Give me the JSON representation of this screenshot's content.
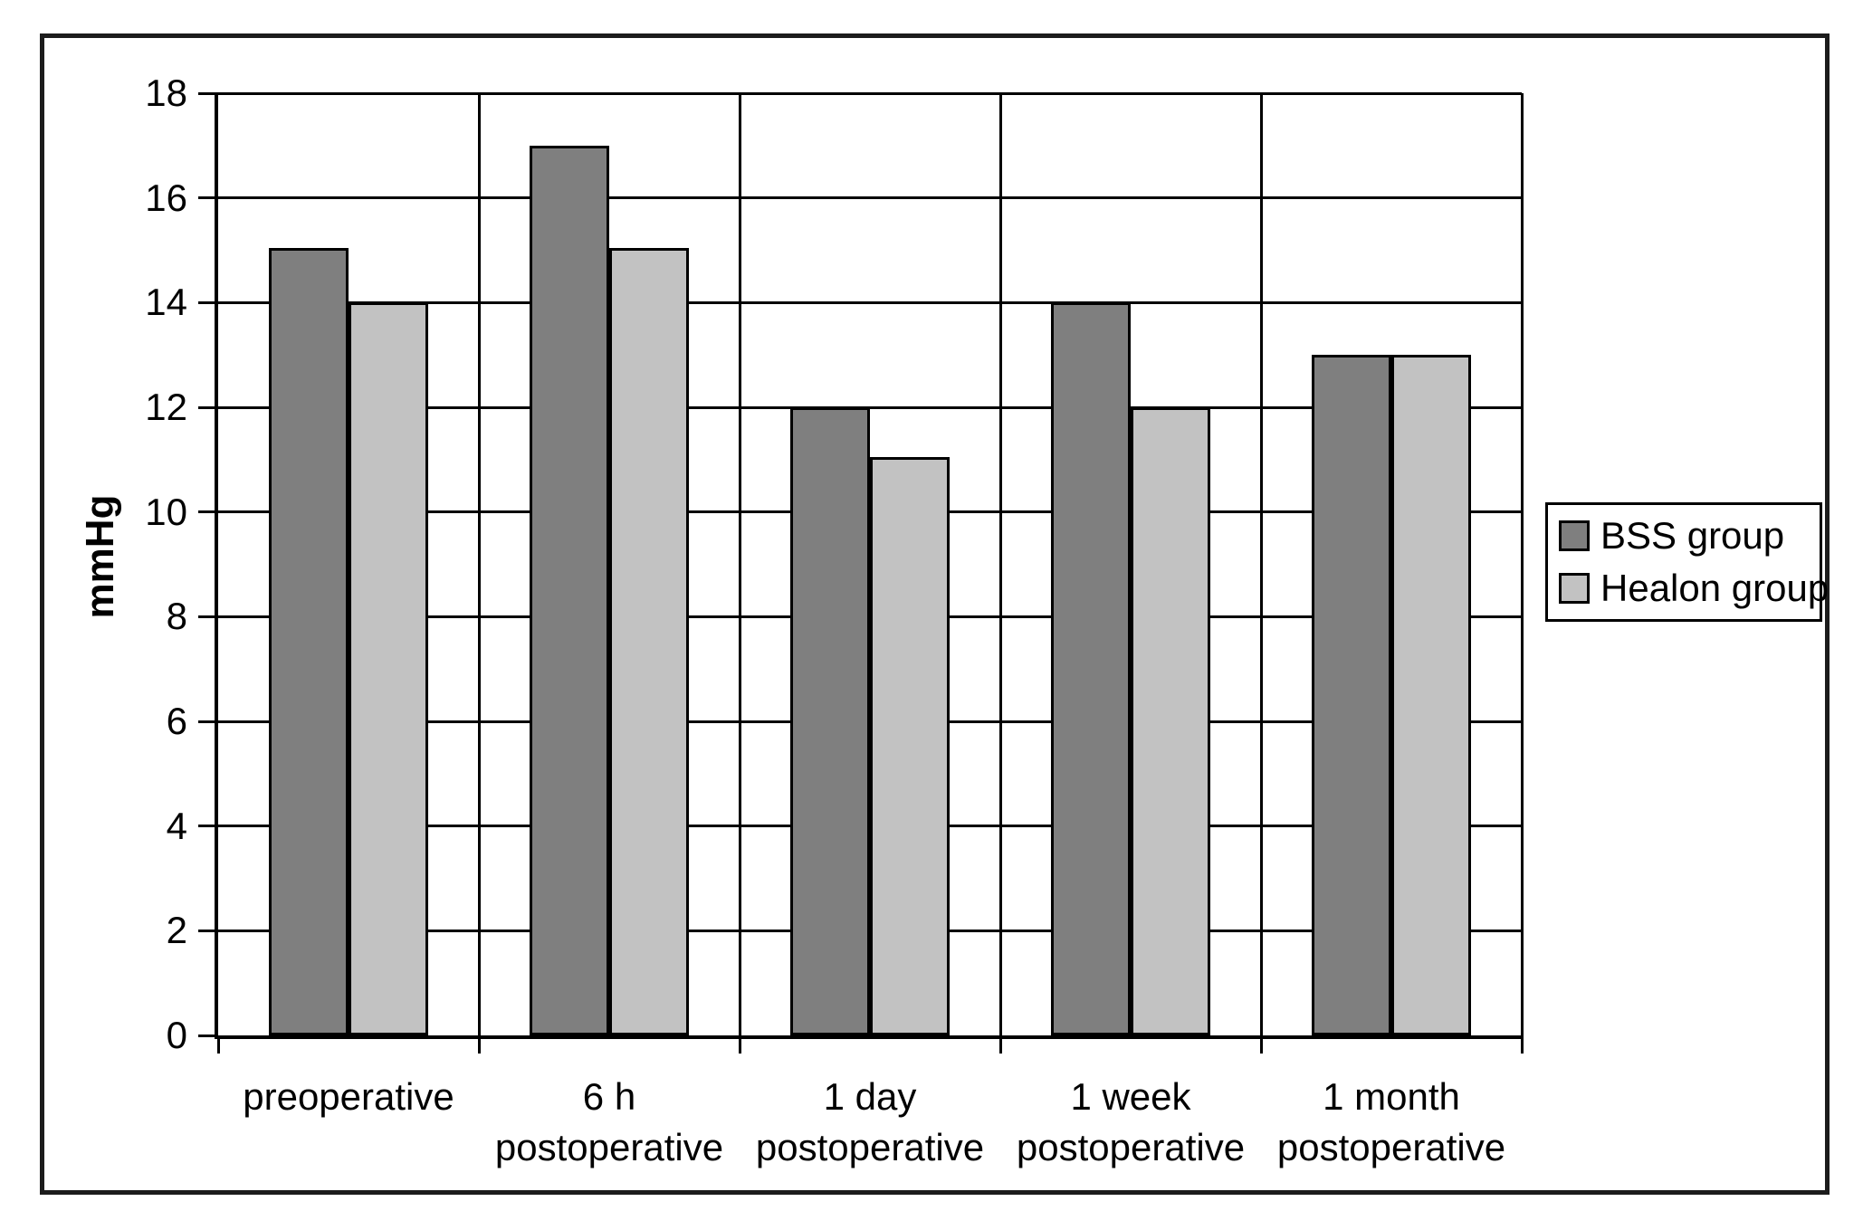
{
  "figure": {
    "background_color": "#ffffff",
    "border_color": "#1c1c1c"
  },
  "chart_data": {
    "type": "bar",
    "title": "",
    "xlabel": "",
    "ylabel": "mmHg",
    "ylim": [
      0,
      18
    ],
    "yticks": [
      0,
      2,
      4,
      6,
      8,
      10,
      12,
      14,
      16,
      18
    ],
    "grid": "both",
    "legend_position": "right",
    "categories": [
      "preoperative",
      "6 h\npostoperative",
      "1 day\npostoperative",
      "1 week\npostoperative",
      "1 month\npostoperative"
    ],
    "series": [
      {
        "name": "BSS group",
        "color": "#7f7f7f",
        "values": [
          15.05,
          17,
          12,
          14,
          13
        ]
      },
      {
        "name": "Healon group",
        "color": "#c2c2c2",
        "values": [
          14,
          15.05,
          11.05,
          12,
          13
        ]
      }
    ]
  }
}
